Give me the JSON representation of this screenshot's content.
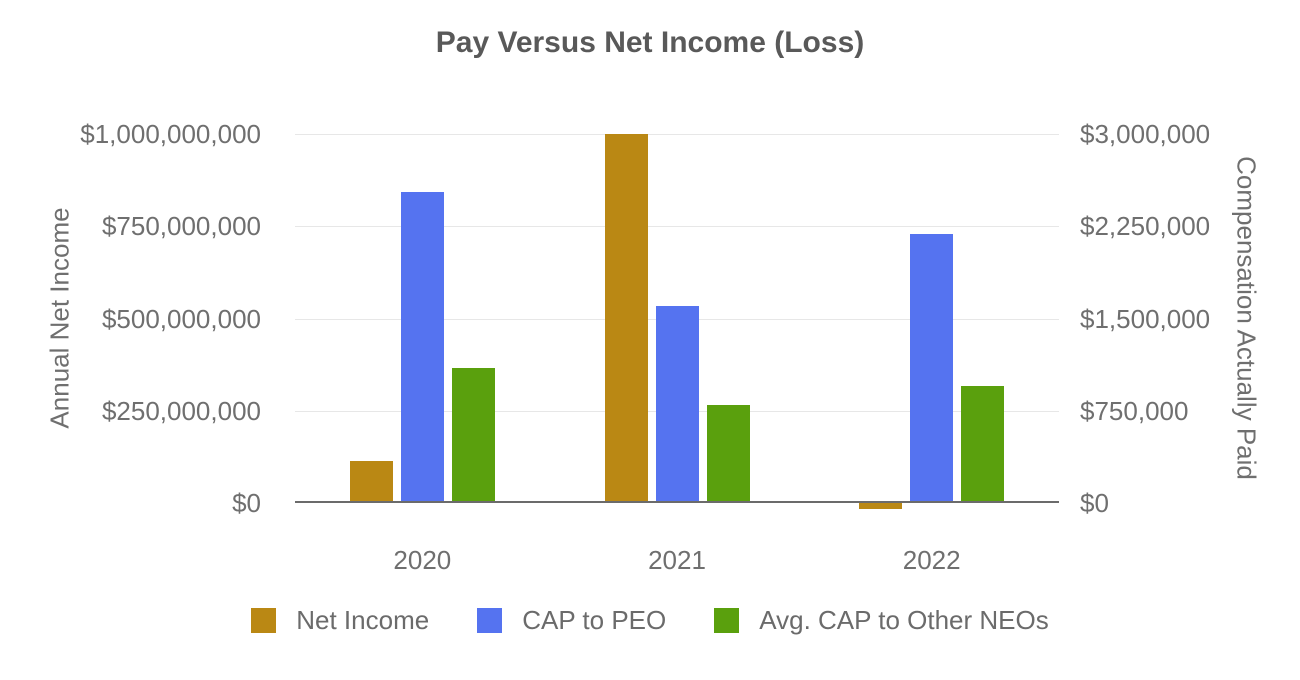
{
  "chart_data": {
    "type": "bar",
    "title": "Pay Versus Net Income (Loss)",
    "categories": [
      "2020",
      "2021",
      "2022"
    ],
    "series": [
      {
        "name": "Net Income",
        "axis": "left",
        "color": "#BA8814",
        "values": [
          115000000,
          1000000000,
          -15000000
        ]
      },
      {
        "name": "CAP to PEO",
        "axis": "right",
        "color": "#5573F0",
        "values": [
          2530000,
          1600000,
          2190000
        ]
      },
      {
        "name": "Avg. CAP to Other NEOs",
        "axis": "right",
        "color": "#5AA00D",
        "values": [
          1100000,
          800000,
          950000
        ]
      }
    ],
    "left_axis": {
      "title": "Annual Net Income",
      "min": 0,
      "max": 1000000000,
      "ticks": [
        "$0",
        "$250,000,000",
        "$500,000,000",
        "$750,000,000",
        "$1,000,000,000"
      ]
    },
    "right_axis": {
      "title": "Compensation Actually Paid",
      "min": 0,
      "max": 3000000,
      "ticks": [
        "$0",
        "$750,000",
        "$1,500,000",
        "$2,250,000",
        "$3,000,000"
      ]
    },
    "grid": true,
    "legend_position": "bottom",
    "styles": {
      "grid_color": "#E7E7E7",
      "axis_line_color": "#6B6B6B",
      "text_color": "#6F6F6F",
      "title_color": "#595959",
      "background": "#FFFFFF"
    }
  }
}
